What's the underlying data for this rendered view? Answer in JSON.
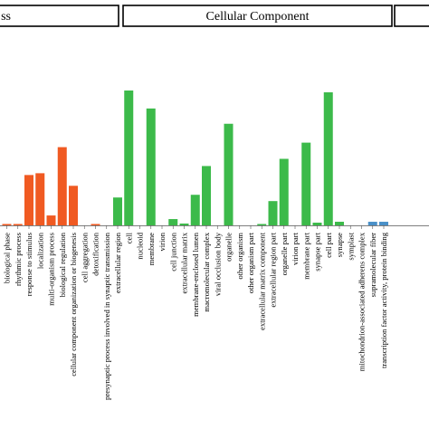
{
  "chart_data": {
    "type": "bar",
    "title": "",
    "xlabel": "",
    "ylabel": "",
    "colors": {
      "biological_process": "#f05a22",
      "cellular_component": "#3cba4a",
      "molecular_function": "#4a90c8"
    },
    "groups": [
      {
        "name": "ss",
        "series": "biological_process"
      },
      {
        "name": "Cellular Component",
        "series": "cellular_component"
      },
      {
        "name": "",
        "series": "molecular_function"
      }
    ],
    "categories": [
      "biological phase",
      "rhythmic process",
      "response to stimulus",
      "localization",
      "multi-organism process",
      "biological regulation",
      "cellular component organization or biogenesis",
      "cell aggregation",
      "detoxification",
      "presynaptic process involved in synaptic transmission",
      "extracellular region",
      "cell",
      "nucleoid",
      "membrane",
      "virion",
      "cell junction",
      "extracellular matrix",
      "membrane-enclosed lumen",
      "macromolecular complex",
      "viral occlusion body",
      "organelle",
      "other organism",
      "other organism part",
      "extracellular matrix component",
      "extracellular region part",
      "organelle part",
      "virion part",
      "membrane part",
      "synapse part",
      "cell part",
      "synapse",
      "symplast",
      "mitochondrion-associated adherens complex",
      "supramolecular fiber",
      "transcription factor activity, protein binding"
    ],
    "series": [
      {
        "key": "biological_process",
        "points": [
          {
            "label": "biological phase",
            "value": 1
          },
          {
            "label": "rhythmic process",
            "value": 1
          },
          {
            "label": "response to stimulus",
            "value": 56
          },
          {
            "label": "localization",
            "value": 58
          },
          {
            "label": "multi-organism process",
            "value": 11
          },
          {
            "label": "biological regulation",
            "value": 87
          },
          {
            "label": "cellular component organization or biogenesis",
            "value": 44
          },
          {
            "label": "cell aggregation",
            "value": 0
          },
          {
            "label": "detoxification",
            "value": 1
          }
        ]
      },
      {
        "key": "cellular_component",
        "points": [
          {
            "label": "presynaptic process involved in synaptic transmission",
            "value": 0
          },
          {
            "label": "extracellular region",
            "value": 31
          },
          {
            "label": "cell",
            "value": 150
          },
          {
            "label": "nucleoid",
            "value": 0
          },
          {
            "label": "membrane",
            "value": 130
          },
          {
            "label": "virion",
            "value": 0
          },
          {
            "label": "cell junction",
            "value": 7
          },
          {
            "label": "extracellular matrix",
            "value": 2
          },
          {
            "label": "membrane-enclosed lumen",
            "value": 34
          },
          {
            "label": "macromolecular complex",
            "value": 66
          },
          {
            "label": "viral occlusion body",
            "value": 0
          },
          {
            "label": "organelle",
            "value": 113
          },
          {
            "label": "other organism",
            "value": 0
          },
          {
            "label": "other organism part",
            "value": 0
          },
          {
            "label": "extracellular matrix component",
            "value": 1
          },
          {
            "label": "extracellular region part",
            "value": 27
          },
          {
            "label": "organelle part",
            "value": 74
          },
          {
            "label": "virion part",
            "value": 0
          },
          {
            "label": "membrane part",
            "value": 92
          },
          {
            "label": "synapse part",
            "value": 3
          },
          {
            "label": "cell part",
            "value": 148
          },
          {
            "label": "synapse",
            "value": 4
          },
          {
            "label": "symplast",
            "value": 0
          }
        ]
      },
      {
        "key": "molecular_function",
        "points": [
          {
            "label": "mitochondrion-associated adherens complex",
            "value": 0
          },
          {
            "label": "supramolecular fiber",
            "value": 4
          },
          {
            "label": "transcription factor activity, protein binding",
            "value": 4
          }
        ]
      }
    ],
    "ylim": [
      0,
      160
    ]
  }
}
